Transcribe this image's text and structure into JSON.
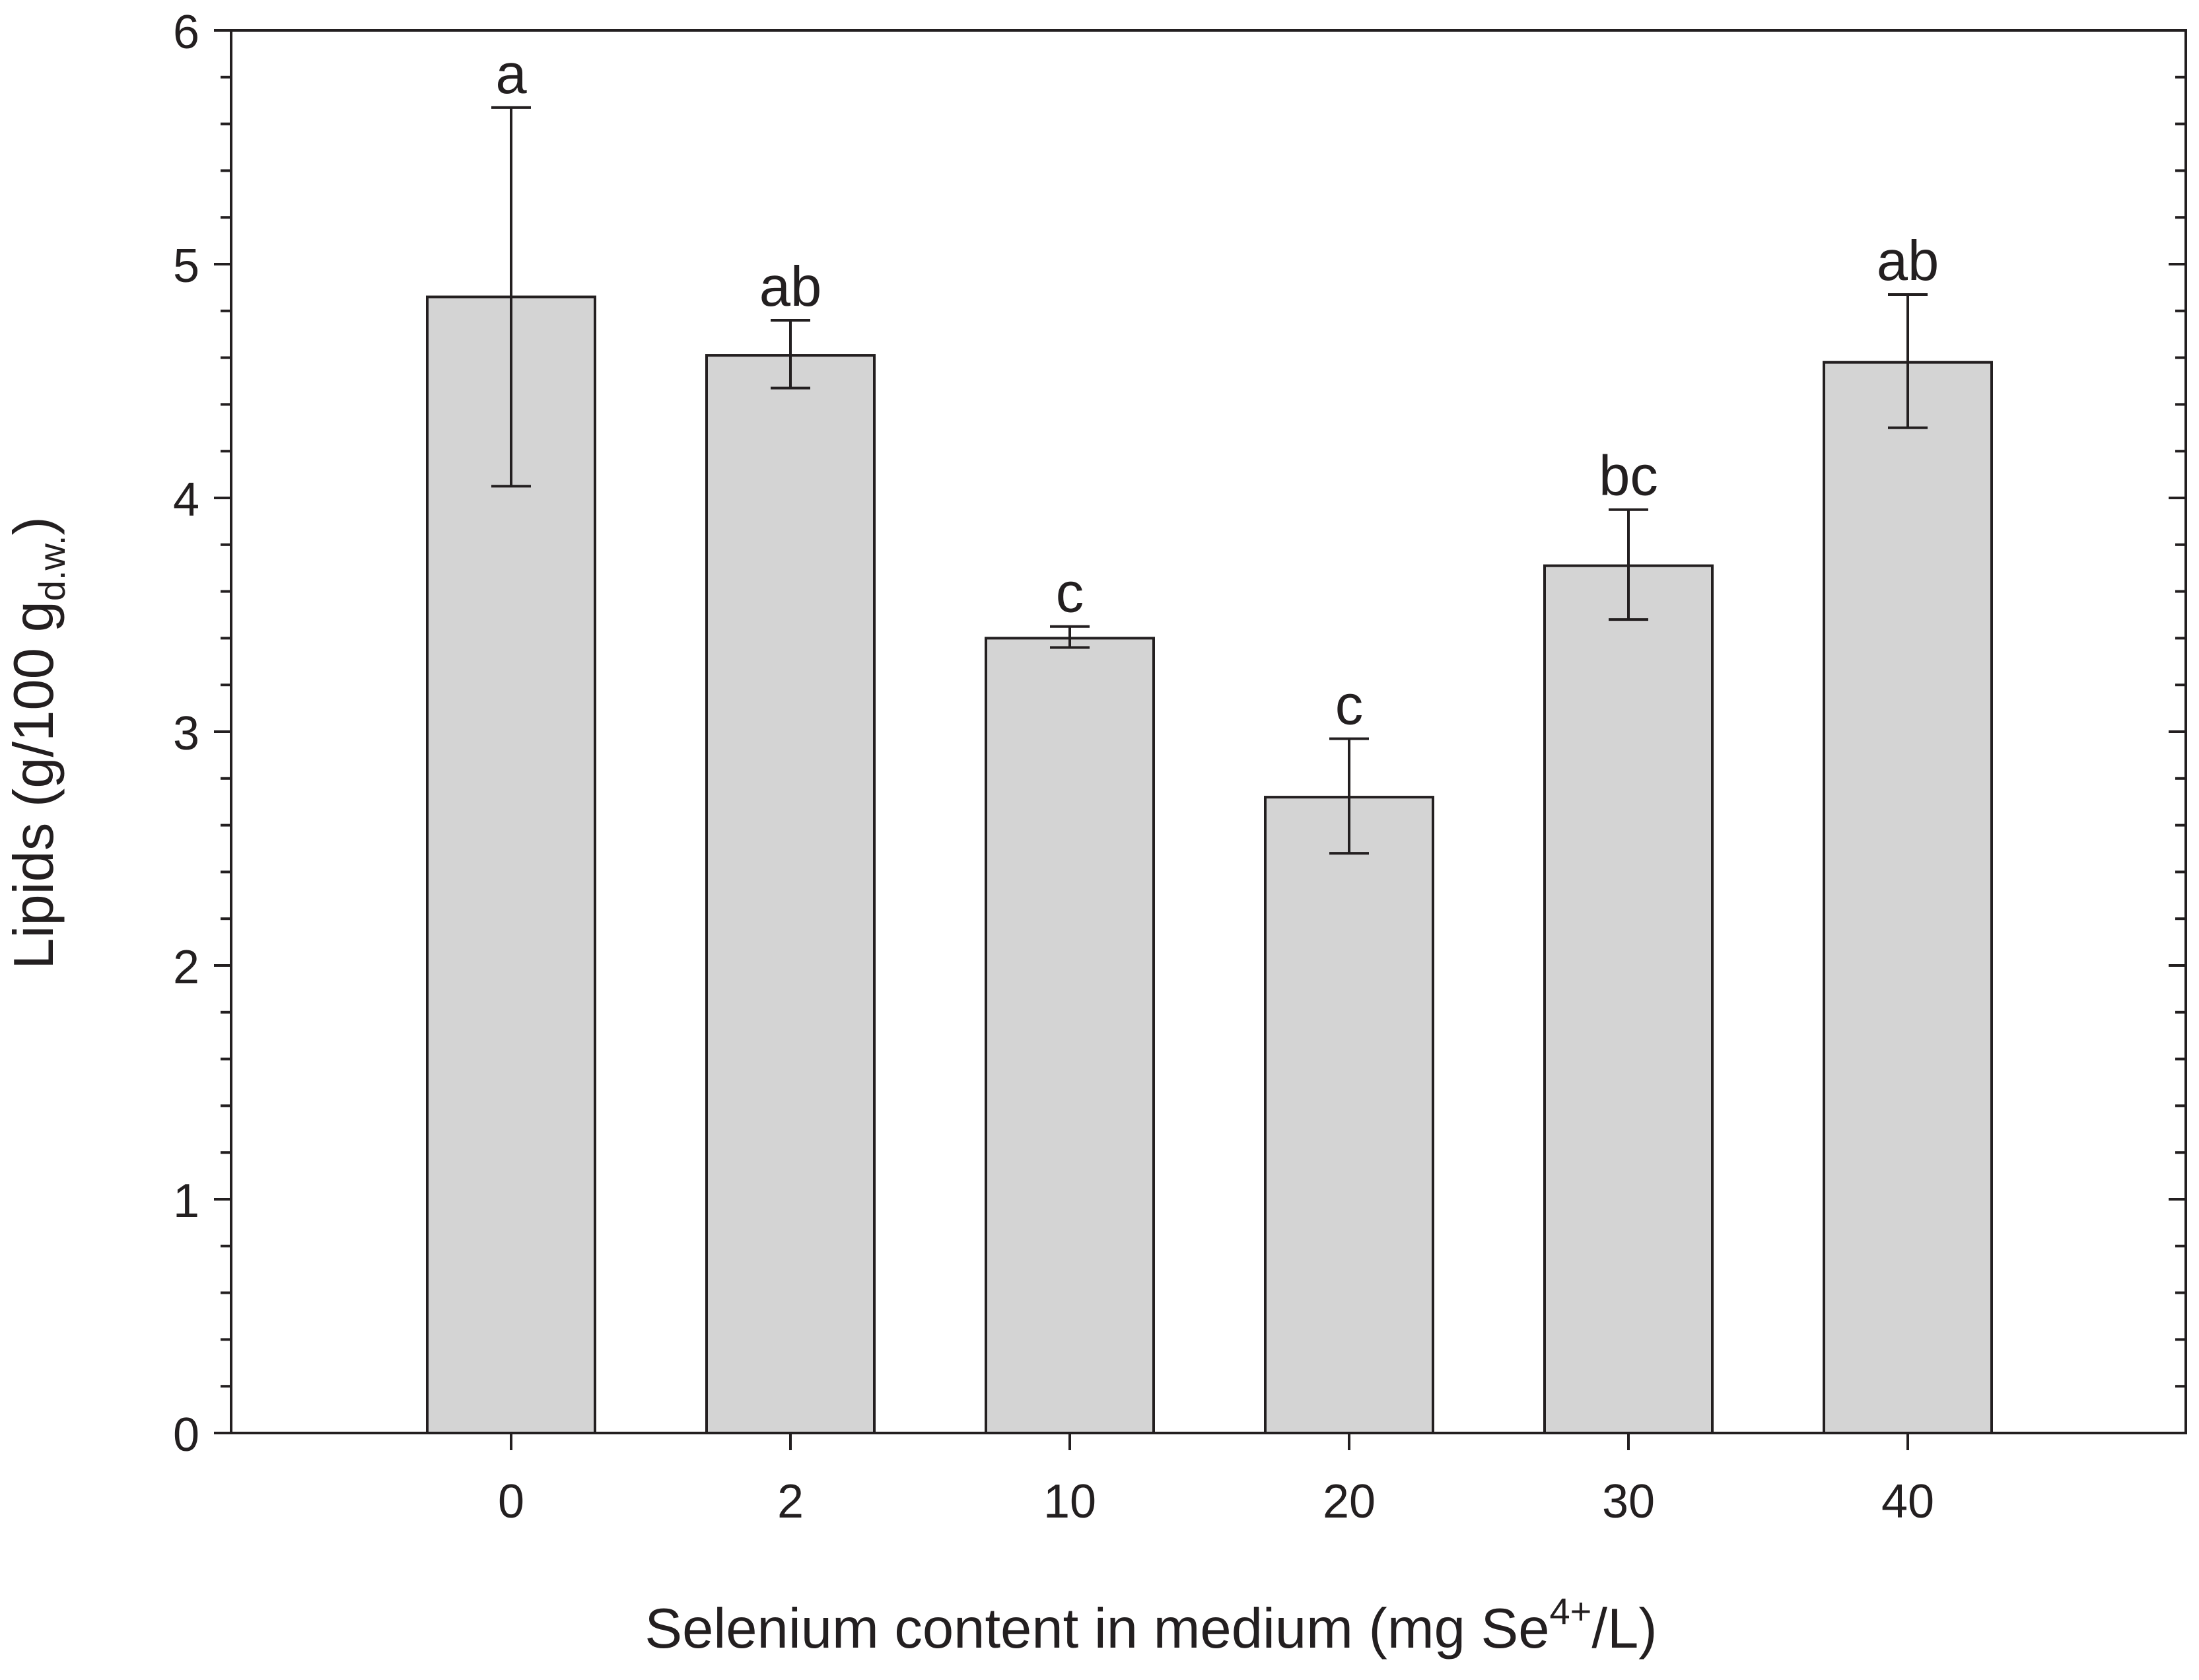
{
  "chart_data": {
    "type": "bar",
    "categories": [
      "0",
      "2",
      "10",
      "20",
      "30",
      "40"
    ],
    "values": [
      4.86,
      4.61,
      3.4,
      2.72,
      3.71,
      4.58
    ],
    "error_low": [
      4.05,
      4.47,
      3.36,
      2.48,
      3.48,
      4.3
    ],
    "error_high": [
      5.67,
      4.76,
      3.45,
      2.97,
      3.95,
      4.87
    ],
    "significance_labels": [
      "a",
      "ab",
      "c",
      "c",
      "bc",
      "ab"
    ],
    "xlabel": {
      "main": "Selenium content in medium (mg Se",
      "sup": "4+",
      "tail": "/L)"
    },
    "ylabel": {
      "main": "Lipids (g/100 g",
      "sub": "d.w.",
      "tail": ")"
    },
    "ylim": [
      0,
      6
    ],
    "yticks": [
      "0",
      "1",
      "2",
      "3",
      "4",
      "5",
      "6"
    ],
    "grid": false,
    "colors": {
      "bar_fill": "#d4d4d4",
      "stroke": "#231f20",
      "text": "#231f20"
    }
  }
}
